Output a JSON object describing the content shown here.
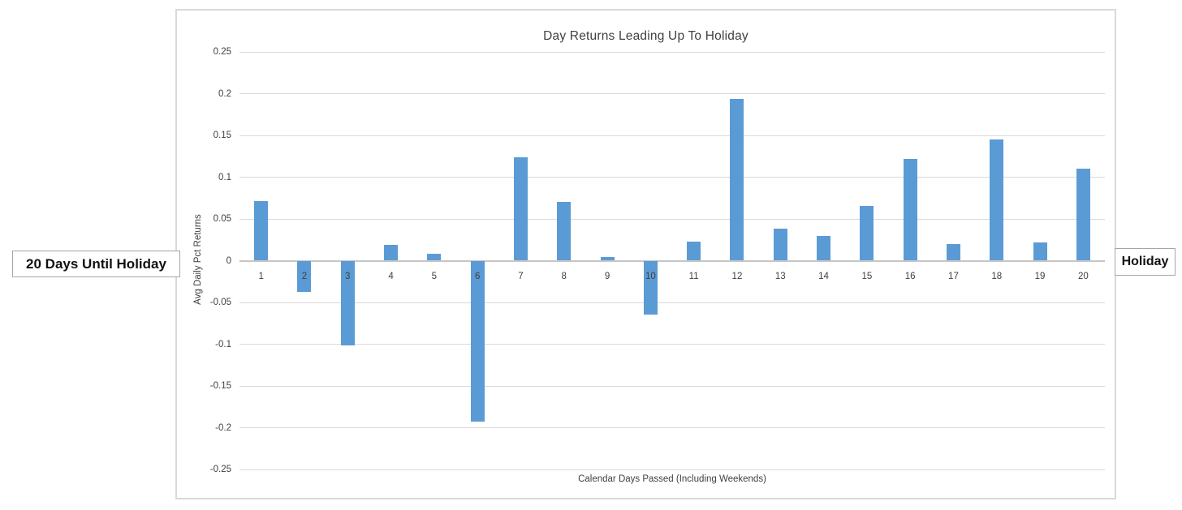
{
  "canvas": {
    "background": "#ffffff"
  },
  "left_callout": {
    "label": "20 Days Until Holiday"
  },
  "right_callout": {
    "label": "Holiday"
  },
  "chart_data": {
    "type": "bar",
    "title": "Day Returns Leading Up To Holiday",
    "xlabel": "Calendar Days Passed (Including Weekends)",
    "ylabel": "Avg Daily Pct Returns",
    "categories": [
      "1",
      "2",
      "3",
      "4",
      "5",
      "6",
      "7",
      "8",
      "9",
      "10",
      "11",
      "12",
      "13",
      "14",
      "15",
      "16",
      "17",
      "18",
      "19",
      "20"
    ],
    "values": [
      0.071,
      -0.037,
      -0.101,
      0.019,
      0.008,
      -0.193,
      0.124,
      0.07,
      0.004,
      -0.065,
      0.023,
      0.194,
      0.038,
      0.03,
      0.066,
      0.122,
      0.02,
      0.145,
      0.022,
      0.11
    ],
    "ylim": [
      -0.25,
      0.25
    ],
    "ytick_values": [
      0.25,
      0.2,
      0.15,
      0.1,
      0.05,
      0,
      -0.05,
      -0.1,
      -0.15,
      -0.2,
      -0.25
    ],
    "ytick_labels": [
      "0.25",
      "0.2",
      "0.15",
      "0.1",
      "0.05",
      "0",
      "-0.05",
      "-0.1",
      "-0.15",
      "-0.2",
      "-0.25"
    ],
    "grid": true,
    "legend": "none",
    "colors": {
      "bar": "#5B9BD5",
      "gridline": "#D9D9D9",
      "zero_line": "#C6C6C6",
      "chart_border": "#D9D9D9",
      "callout_border": "#A6A6A6",
      "text": "#404040"
    }
  }
}
